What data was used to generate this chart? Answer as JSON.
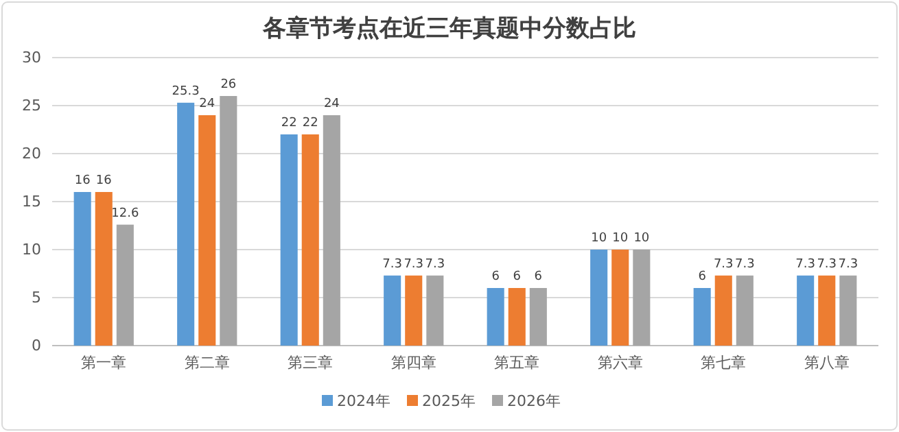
{
  "chart_data": {
    "type": "bar",
    "title": "各章节考点在近三年真题中分数占比",
    "categories": [
      "第一章",
      "第二章",
      "第三章",
      "第四章",
      "第五章",
      "第六章",
      "第七章",
      "第八章"
    ],
    "series": [
      {
        "name": "2024年",
        "color": "#5b9bd5",
        "values": [
          16,
          25.3,
          22,
          7.3,
          6,
          10,
          6,
          7.3
        ]
      },
      {
        "name": "2025年",
        "color": "#ed7d31",
        "values": [
          16,
          24,
          22,
          7.3,
          6,
          10,
          7.3,
          7.3
        ]
      },
      {
        "name": "2026年",
        "color": "#a5a5a5",
        "values": [
          12.6,
          26,
          24,
          7.3,
          6,
          10,
          7.3,
          7.3
        ]
      }
    ],
    "ylim": [
      0,
      30
    ],
    "yticks": [
      0,
      5,
      10,
      15,
      20,
      25,
      30
    ],
    "grid": "y",
    "legend": "bottom",
    "data_labels": true
  }
}
